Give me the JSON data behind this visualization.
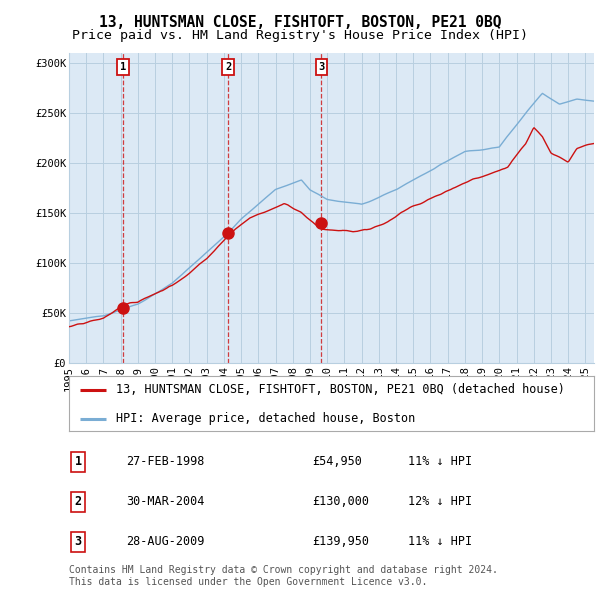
{
  "title": "13, HUNTSMAN CLOSE, FISHTOFT, BOSTON, PE21 0BQ",
  "subtitle": "Price paid vs. HM Land Registry's House Price Index (HPI)",
  "xlim_start": 1995.0,
  "xlim_end": 2025.5,
  "ylim_min": 0,
  "ylim_max": 310000,
  "yticks": [
    0,
    50000,
    100000,
    150000,
    200000,
    250000,
    300000
  ],
  "ytick_labels": [
    "£0",
    "£50K",
    "£100K",
    "£150K",
    "£200K",
    "£250K",
    "£300K"
  ],
  "xticks": [
    1995,
    1996,
    1997,
    1998,
    1999,
    2000,
    2001,
    2002,
    2003,
    2004,
    2005,
    2006,
    2007,
    2008,
    2009,
    2010,
    2011,
    2012,
    2013,
    2014,
    2015,
    2016,
    2017,
    2018,
    2019,
    2020,
    2021,
    2022,
    2023,
    2024,
    2025
  ],
  "sale_dates": [
    1998.15,
    2004.25,
    2009.66
  ],
  "sale_prices": [
    54950,
    130000,
    139950
  ],
  "sale_labels": [
    "1",
    "2",
    "3"
  ],
  "hpi_color": "#7aadd4",
  "price_color": "#cc1111",
  "background_color": "#ffffff",
  "plot_bg_color": "#dce9f5",
  "grid_color": "#b8cfe0",
  "legend_entries": [
    "13, HUNTSMAN CLOSE, FISHTOFT, BOSTON, PE21 0BQ (detached house)",
    "HPI: Average price, detached house, Boston"
  ],
  "table_rows": [
    [
      "1",
      "27-FEB-1998",
      "£54,950",
      "11% ↓ HPI"
    ],
    [
      "2",
      "30-MAR-2004",
      "£130,000",
      "12% ↓ HPI"
    ],
    [
      "3",
      "28-AUG-2009",
      "£139,950",
      "11% ↓ HPI"
    ]
  ],
  "footnote": "Contains HM Land Registry data © Crown copyright and database right 2024.\nThis data is licensed under the Open Government Licence v3.0.",
  "title_fontsize": 10.5,
  "subtitle_fontsize": 9.5,
  "tick_fontsize": 7.5,
  "legend_fontsize": 8.5,
  "table_fontsize": 8.5,
  "footnote_fontsize": 7.0
}
